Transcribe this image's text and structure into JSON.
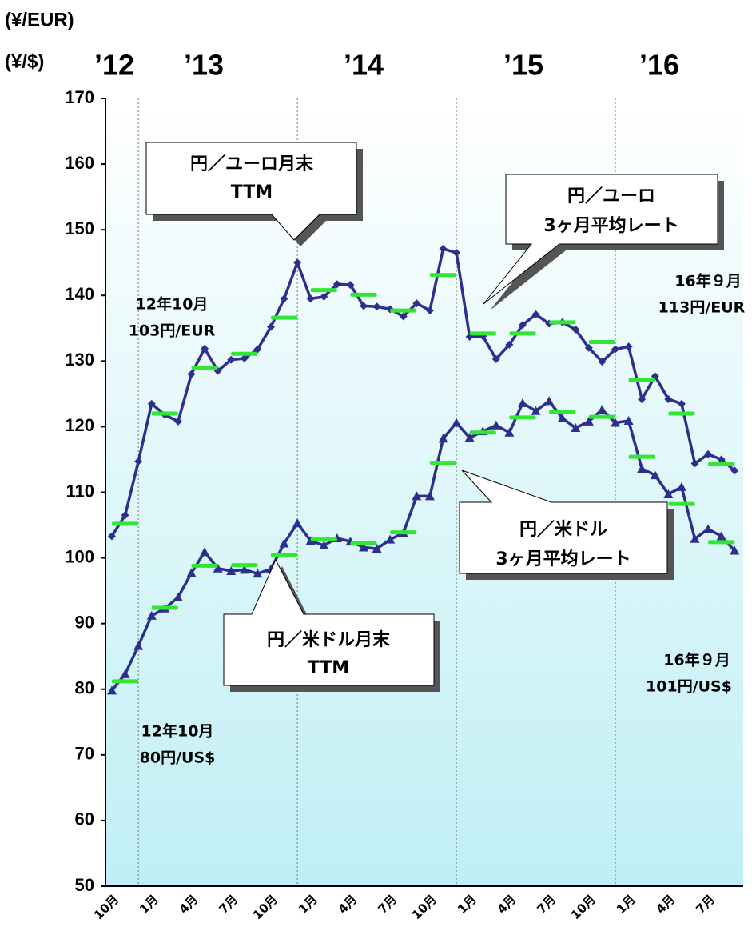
{
  "chart_data": {
    "type": "line",
    "y_axis_labels": [
      "(¥/EUR)",
      "(¥/$)"
    ],
    "year_labels": [
      "’12",
      "’13",
      "’14",
      "’15",
      "’16"
    ],
    "categories": [
      "10月",
      null,
      null,
      "1月",
      null,
      null,
      "4月",
      null,
      null,
      "7月",
      null,
      null,
      "10月",
      null,
      null,
      "1月",
      null,
      null,
      "4月",
      null,
      null,
      "7月",
      null,
      null,
      "10月",
      null,
      null,
      "1月",
      null,
      null,
      "4月",
      null,
      null,
      "7月",
      null,
      null,
      "10月",
      null,
      null,
      "1月",
      null,
      null,
      "4月",
      null,
      null,
      "7月",
      null,
      null
    ],
    "ylim": [
      50,
      170
    ],
    "yticks": [
      50,
      60,
      70,
      80,
      90,
      100,
      110,
      120,
      130,
      140,
      150,
      160,
      170
    ],
    "series": [
      {
        "style": "line-diamond",
        "color": "#2e2e8c",
        "values": [
          103.3,
          106.5,
          114.7,
          123.5,
          121.8,
          120.8,
          128.0,
          131.9,
          128.5,
          130.2,
          130.4,
          131.8,
          135.2,
          139.5,
          145.0,
          139.5,
          139.8,
          141.7,
          141.6,
          138.4,
          138.3,
          137.9,
          136.8,
          138.8,
          137.7,
          147.1,
          146.5,
          133.7,
          133.8,
          130.3,
          132.5,
          135.5,
          137.1,
          135.7,
          135.9,
          134.8,
          132.0,
          129.9,
          131.8,
          132.2,
          124.2,
          127.7,
          124.2,
          123.5,
          114.4,
          115.8,
          115.0,
          113.3
        ]
      },
      {
        "style": "line-triangle",
        "color": "#2e2e8c",
        "values": [
          79.8,
          82.3,
          86.6,
          91.2,
          92.3,
          94.0,
          97.7,
          100.9,
          98.4,
          98.0,
          98.2,
          97.6,
          98.3,
          102.2,
          105.3,
          102.6,
          101.9,
          103.0,
          102.5,
          101.6,
          101.4,
          102.8,
          103.8,
          109.4,
          109.4,
          118.2,
          120.6,
          118.3,
          119.3,
          120.2,
          119.1,
          123.6,
          122.4,
          123.9,
          121.3,
          119.8,
          120.8,
          122.6,
          120.6,
          120.9,
          113.6,
          112.6,
          109.7,
          110.8,
          102.9,
          104.4,
          103.3,
          101.1
        ]
      },
      {
        "style": "dash",
        "color": "#33e633",
        "values": [
          null,
          105.2,
          null,
          null,
          122.0,
          null,
          null,
          129.0,
          null,
          null,
          131.1,
          null,
          null,
          136.6,
          null,
          null,
          140.8,
          null,
          null,
          140.1,
          null,
          null,
          137.7,
          null,
          null,
          143.1,
          null,
          null,
          134.2,
          null,
          null,
          134.2,
          null,
          null,
          135.9,
          null,
          null,
          132.9,
          null,
          null,
          127.1,
          null,
          null,
          122.0,
          null,
          null,
          114.3,
          null
        ]
      },
      {
        "style": "dash",
        "color": "#33e633",
        "values": [
          null,
          81.2,
          null,
          null,
          92.4,
          null,
          null,
          98.8,
          null,
          null,
          98.9,
          null,
          null,
          100.4,
          null,
          null,
          102.8,
          null,
          null,
          102.2,
          null,
          null,
          103.9,
          null,
          null,
          114.5,
          null,
          null,
          119.1,
          null,
          null,
          121.4,
          null,
          null,
          122.2,
          null,
          null,
          121.5,
          null,
          null,
          115.4,
          null,
          null,
          108.2,
          null,
          null,
          102.4,
          null
        ]
      }
    ],
    "annotations": [
      {
        "lines": [
          "円／ユーロ月末",
          "TTM"
        ]
      },
      {
        "lines": [
          "円／ユーロ",
          "3ヶ月平均レート"
        ]
      },
      {
        "lines": [
          "円／米ドル",
          "3ヶ月平均レート"
        ]
      },
      {
        "lines": [
          "円／米ドル月末",
          "TTM"
        ]
      },
      {
        "lines": [
          "12年10月",
          "103円/EUR"
        ]
      },
      {
        "lines": [
          "16年９月",
          "113円/EUR"
        ]
      },
      {
        "lines": [
          "16年９月",
          "101円/US$"
        ]
      },
      {
        "lines": [
          "12年10月",
          "80円/US$"
        ]
      }
    ]
  }
}
